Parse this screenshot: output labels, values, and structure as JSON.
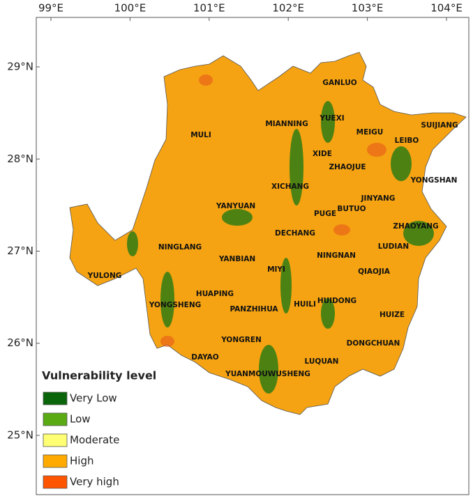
{
  "map": {
    "xlim": [
      98.815,
      104.282
    ],
    "ylim": [
      24.357,
      29.537
    ],
    "xticks": [
      {
        "value": 99,
        "label": "99°E"
      },
      {
        "value": 100,
        "label": "100°E"
      },
      {
        "value": 101,
        "label": "101°E"
      },
      {
        "value": 102,
        "label": "102°E"
      },
      {
        "value": 103,
        "label": "103°E"
      },
      {
        "value": 104,
        "label": "104°E"
      }
    ],
    "yticks": [
      {
        "value": 29,
        "label": "29°N"
      },
      {
        "value": 28,
        "label": "28°N"
      },
      {
        "value": 27,
        "label": "27°N"
      },
      {
        "value": 26,
        "label": "26°N"
      },
      {
        "value": 25,
        "label": "25°N"
      }
    ],
    "labels": [
      "GANLUO",
      "MULI",
      "MIANNING",
      "YUEXI",
      "MEIGU",
      "SUIJIANG",
      "LEIBO",
      "XIDE",
      "ZHAOJUE",
      "YONGSHAN",
      "XICHANG",
      "YANYUAN",
      "JINYANG",
      "PUGE",
      "BUTUO",
      "ZHAOYANG",
      "DECHANG",
      "NINGLANG",
      "LUDIAN",
      "NINGNAN",
      "YANBIAN",
      "MIYI",
      "QIAOJIA",
      "YULONG",
      "HUAPING",
      "YONGSHENG",
      "PANZHIHUA",
      "HUILI",
      "HUIDONG",
      "HUIZE",
      "YONGREN",
      "DONGCHUAN",
      "DAYAO",
      "LUQUAN",
      "YUANMOUWUSHENG"
    ],
    "legend": {
      "title": "Vulnerability level",
      "items": [
        {
          "name": "Very Low",
          "color": "#0a640a"
        },
        {
          "name": "Low",
          "color": "#5aaa14"
        },
        {
          "name": "Moderate",
          "color": "#ffff73"
        },
        {
          "name": "High",
          "color": "#ffaa00"
        },
        {
          "name": "Very high",
          "color": "#ff5500"
        }
      ]
    }
  }
}
